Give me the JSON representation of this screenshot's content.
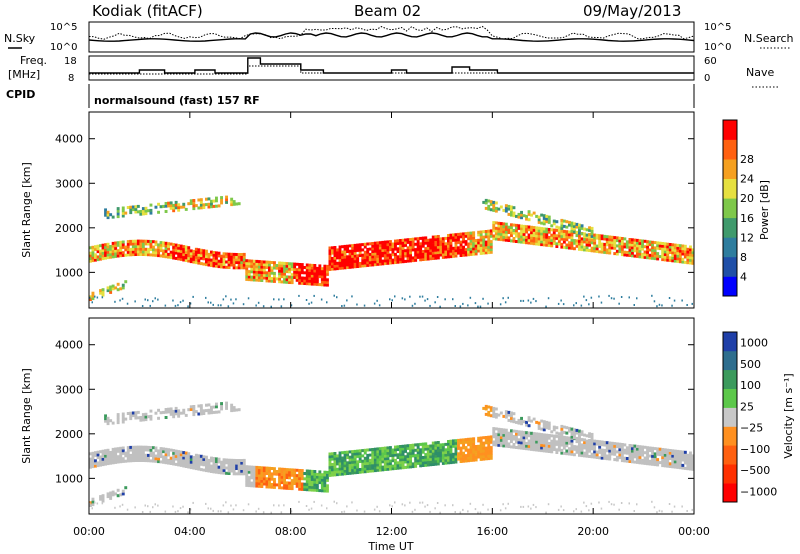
{
  "header": {
    "station": "Kodiak (fitACF)",
    "beam": "Beam 02",
    "date": "09/May/2013"
  },
  "summary_panels": {
    "nsky_label": "N.Sky",
    "nsearch_label": "N.Search",
    "noise_ticks_left": [
      "10^5",
      "10^0"
    ],
    "noise_ticks_right": [
      "10^5",
      "10^0"
    ],
    "freq_label_1": "Freq.",
    "freq_label_2": "[MHz]",
    "freq_ticks": [
      "18",
      "8"
    ],
    "nave_label": "Nave",
    "nave_ticks": [
      "60",
      "0"
    ],
    "cpid_label": "CPID",
    "cpid_text": "normalsound (fast) 157 RF"
  },
  "chart_data": [
    {
      "type": "heatmap",
      "id": "power",
      "ylabel": "Slant Range [km]",
      "ylim": [
        200,
        4600
      ],
      "xlim": [
        0,
        24
      ],
      "yticks": [
        "1000",
        "2000",
        "3000",
        "4000"
      ],
      "colorbar": {
        "label": "Power [dB]",
        "ticks": [
          "4",
          "8",
          "12",
          "16",
          "20",
          "24",
          "28"
        ],
        "colors": [
          "#0000ff",
          "#1f4fa8",
          "#2e7d9e",
          "#3f9a6c",
          "#7ec84a",
          "#e6e040",
          "#f5a020",
          "#ff6010",
          "#ff0000"
        ]
      }
    },
    {
      "type": "heatmap",
      "id": "velocity",
      "ylabel": "Slant Range [km]",
      "ylim": [
        200,
        4600
      ],
      "xlim": [
        0,
        24
      ],
      "yticks": [
        "1000",
        "2000",
        "3000",
        "4000"
      ],
      "xticks": [
        "00:00",
        "04:00",
        "08:00",
        "12:00",
        "16:00",
        "20:00",
        "00:00"
      ],
      "xlabel": "Time UT",
      "colorbar": {
        "label": "Velocity [m s⁻¹]",
        "ticks": [
          "1000",
          "500",
          "100",
          "25",
          "−25",
          "−100",
          "−500",
          "−1000"
        ],
        "colors": [
          "#1f3fa8",
          "#2e6e8e",
          "#3b9a5c",
          "#5cc84a",
          "#c8c8c8",
          "#ff9020",
          "#ff6010",
          "#ff3000",
          "#ff0000"
        ]
      }
    }
  ],
  "colors": {
    "gray_scatter": "#c0c0c0"
  }
}
